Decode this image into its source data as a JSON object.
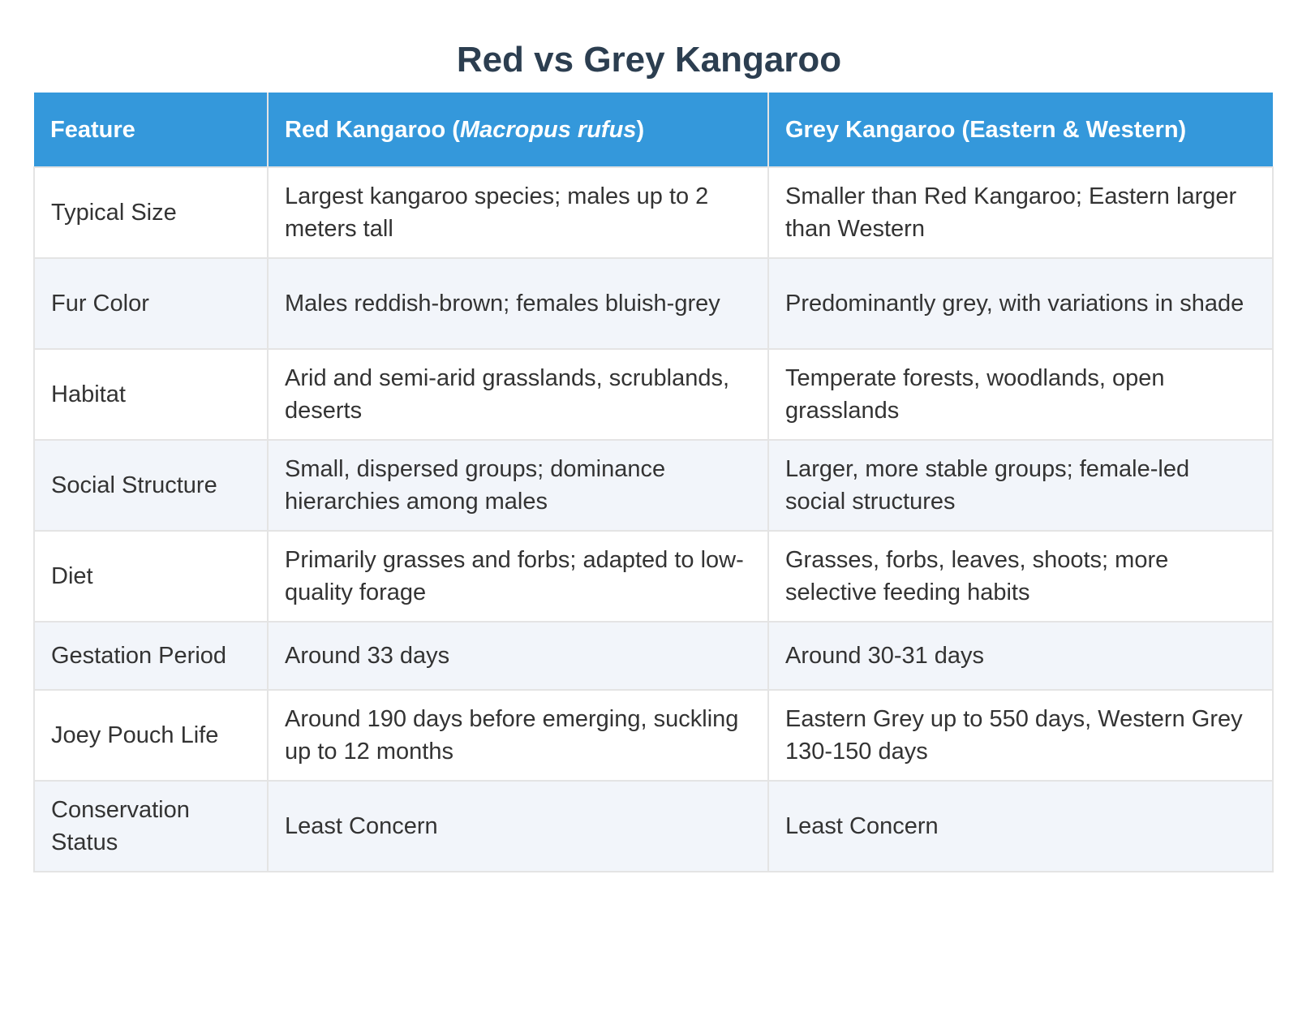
{
  "title": "Red vs Grey Kangaroo",
  "table": {
    "headers": {
      "feature": "Feature",
      "red_prefix": "Red Kangaroo (",
      "red_species": "Macropus rufus",
      "red_suffix": ")",
      "grey": "Grey Kangaroo (Eastern & Western)"
    },
    "rows": [
      {
        "feature": "Typical Size",
        "red": "Largest kangaroo species; males up to 2 meters tall",
        "grey": "Smaller than Red Kangaroo; Eastern larger than Western"
      },
      {
        "feature": "Fur Color",
        "red": "Males reddish-brown; females bluish-grey",
        "grey": "Predominantly grey, with variations in shade"
      },
      {
        "feature": "Habitat",
        "red": "Arid and semi-arid grasslands, scrublands, deserts",
        "grey": "Temperate forests, woodlands, open grasslands"
      },
      {
        "feature": "Social Structure",
        "red": "Small, dispersed groups; dominance hierarchies among males",
        "grey": "Larger, more stable groups; female-led social structures"
      },
      {
        "feature": "Diet",
        "red": "Primarily grasses and forbs; adapted to low-quality forage",
        "grey": "Grasses, forbs, leaves, shoots; more selective feeding habits"
      },
      {
        "feature": "Gestation Period",
        "red": "Around 33 days",
        "grey": "Around 30-31 days"
      },
      {
        "feature": "Joey Pouch Life",
        "red": "Around 190 days before emerging, suckling up to 12 months",
        "grey": "Eastern Grey up to 550 days, Western Grey 130-150 days"
      },
      {
        "feature": "Conservation Status",
        "red": "Least Concern",
        "grey": "Least Concern"
      }
    ]
  },
  "colors": {
    "header_bg": "#3498db",
    "title": "#2c3e50",
    "stripe": "#f2f5fa"
  }
}
